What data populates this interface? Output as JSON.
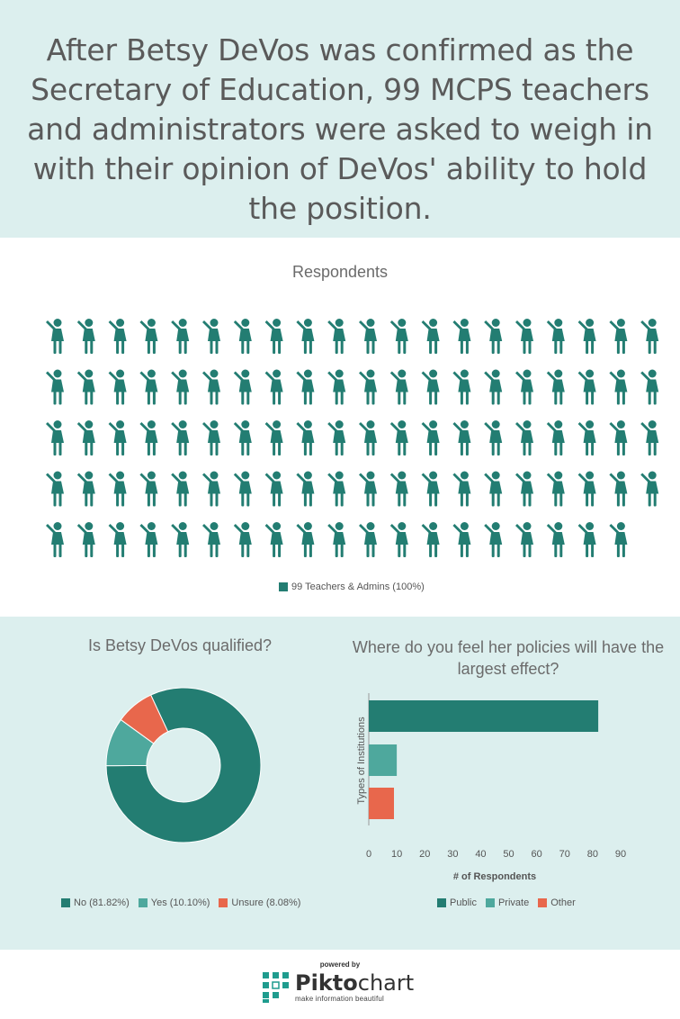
{
  "header": {
    "title": "After Betsy DeVos was confirmed as the Secretary of Education, 99 MCPS teachers and administrators were asked to weigh in with their opinion of DeVos' ability to hold the position."
  },
  "colors": {
    "teal": "#237d72",
    "light_teal": "#4ea89d",
    "orange": "#e8674c",
    "bg": "#dcefee"
  },
  "chart_data": [
    {
      "type": "pictogram",
      "title": "Respondents",
      "icon": "person-icon",
      "count": 99,
      "per_row": 20,
      "legend": [
        "99 Teachers & Admins (100%)"
      ]
    },
    {
      "type": "pie",
      "title": "Is Betsy DeVos qualified?",
      "labels": [
        "No",
        "Yes",
        "Unsure"
      ],
      "values": [
        81.82,
        10.1,
        8.08
      ],
      "legend": [
        "No (81.82%)",
        "Yes (10.10%)",
        "Unsure (8.08%)"
      ],
      "legend_placement": "bottom"
    },
    {
      "type": "bar",
      "orientation": "horizontal",
      "title": "Where do you feel her policies will have the largest effect?",
      "categories": [
        "Public",
        "Private",
        "Other"
      ],
      "values": [
        82,
        10,
        9
      ],
      "xlabel": "# of Respondents",
      "ylabel": "Types of Institutions",
      "xlim": [
        0,
        90
      ],
      "xticks": [
        "0",
        "10",
        "20",
        "30",
        "40",
        "50",
        "60",
        "70",
        "80",
        "90"
      ],
      "legend": [
        "Public",
        "Private",
        "Other"
      ],
      "legend_placement": "bottom"
    }
  ],
  "footer": {
    "powered_by": "powered by",
    "brand_a": "Pikto",
    "brand_b": "chart",
    "tagline": "make information beautiful"
  }
}
